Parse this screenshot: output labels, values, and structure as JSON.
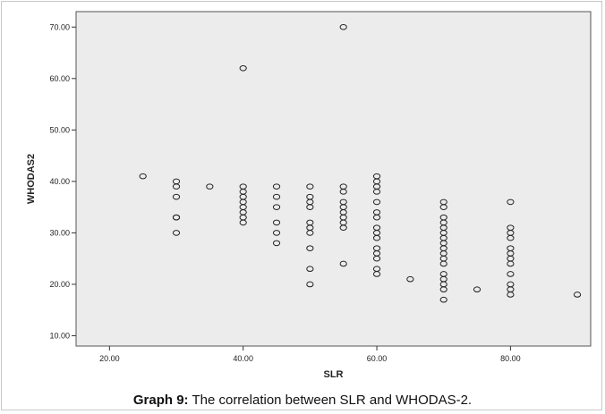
{
  "caption": {
    "bold": "Graph 9:",
    "text": " The correlation between SLR and WHODAS-2."
  },
  "chart_data": {
    "type": "scatter",
    "title": "",
    "xlabel": "SLR",
    "ylabel": "WHODAS2",
    "xlim": [
      15,
      92
    ],
    "ylim": [
      8,
      73
    ],
    "xticks": [
      20,
      40,
      60,
      80
    ],
    "xtick_labels": [
      "20.00",
      "40.00",
      "60.00",
      "80.00"
    ],
    "yticks": [
      10,
      20,
      30,
      40,
      50,
      60,
      70
    ],
    "ytick_labels": [
      "10.00",
      "20.00",
      "30.00",
      "40.00",
      "50.00",
      "60.00",
      "70.00"
    ],
    "grid": false,
    "plot_background": "#ececec",
    "marker": "open-circle",
    "points": [
      [
        25,
        41
      ],
      [
        30,
        40
      ],
      [
        30,
        39
      ],
      [
        30,
        37
      ],
      [
        30,
        33
      ],
      [
        30,
        33
      ],
      [
        30,
        30
      ],
      [
        35,
        39
      ],
      [
        40,
        62
      ],
      [
        40,
        39
      ],
      [
        40,
        38
      ],
      [
        40,
        37
      ],
      [
        40,
        36
      ],
      [
        40,
        35
      ],
      [
        40,
        34
      ],
      [
        40,
        33
      ],
      [
        40,
        32
      ],
      [
        45,
        39
      ],
      [
        45,
        37
      ],
      [
        45,
        35
      ],
      [
        45,
        32
      ],
      [
        45,
        30
      ],
      [
        45,
        28
      ],
      [
        50,
        39
      ],
      [
        50,
        37
      ],
      [
        50,
        36
      ],
      [
        50,
        35
      ],
      [
        50,
        32
      ],
      [
        50,
        31
      ],
      [
        50,
        30
      ],
      [
        50,
        27
      ],
      [
        50,
        23
      ],
      [
        50,
        20
      ],
      [
        55,
        70
      ],
      [
        55,
        39
      ],
      [
        55,
        38
      ],
      [
        55,
        36
      ],
      [
        55,
        35
      ],
      [
        55,
        34
      ],
      [
        55,
        33
      ],
      [
        55,
        32
      ],
      [
        55,
        31
      ],
      [
        55,
        24
      ],
      [
        60,
        41
      ],
      [
        60,
        40
      ],
      [
        60,
        39
      ],
      [
        60,
        38
      ],
      [
        60,
        36
      ],
      [
        60,
        34
      ],
      [
        60,
        33
      ],
      [
        60,
        31
      ],
      [
        60,
        30
      ],
      [
        60,
        29
      ],
      [
        60,
        27
      ],
      [
        60,
        26
      ],
      [
        60,
        25
      ],
      [
        60,
        23
      ],
      [
        60,
        22
      ],
      [
        65,
        21
      ],
      [
        70,
        36
      ],
      [
        70,
        35
      ],
      [
        70,
        33
      ],
      [
        70,
        32
      ],
      [
        70,
        31
      ],
      [
        70,
        30
      ],
      [
        70,
        29
      ],
      [
        70,
        28
      ],
      [
        70,
        27
      ],
      [
        70,
        26
      ],
      [
        70,
        25
      ],
      [
        70,
        24
      ],
      [
        70,
        22
      ],
      [
        70,
        21
      ],
      [
        70,
        20
      ],
      [
        70,
        19
      ],
      [
        70,
        17
      ],
      [
        75,
        19
      ],
      [
        80,
        36
      ],
      [
        80,
        31
      ],
      [
        80,
        30
      ],
      [
        80,
        29
      ],
      [
        80,
        27
      ],
      [
        80,
        26
      ],
      [
        80,
        25
      ],
      [
        80,
        24
      ],
      [
        80,
        22
      ],
      [
        80,
        20
      ],
      [
        80,
        19
      ],
      [
        80,
        18
      ],
      [
        90,
        18
      ]
    ]
  }
}
